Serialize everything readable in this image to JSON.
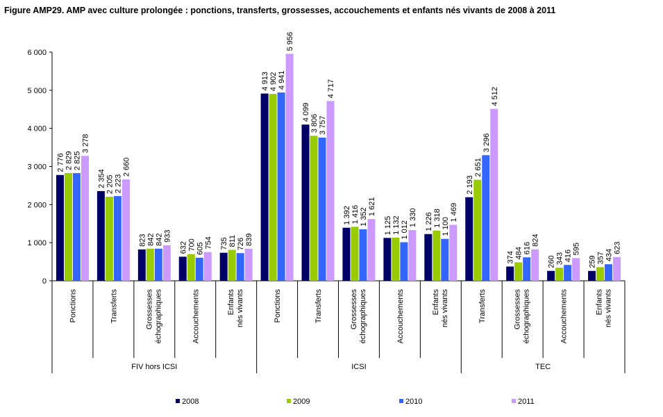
{
  "title": "Figure AMP29. AMP avec culture prolongée : ponctions, transferts, grossesses, accouchements et enfants nés vivants de 2008 à 2011",
  "chart_data": {
    "type": "bar",
    "ylim": [
      0,
      6000
    ],
    "yticks": [
      "0",
      "1 000",
      "2 000",
      "3 000",
      "4 000",
      "5 000",
      "6 000"
    ],
    "grid": false,
    "legend_position": "bottom",
    "groups": [
      {
        "name": "FIV hors ICSI",
        "categories": [
          "Ponctions",
          "Transferts",
          "Grossesses échographiques",
          "Accouchements",
          "Enfants nés vivants"
        ]
      },
      {
        "name": "ICSI",
        "categories": [
          "Ponctions",
          "Transferts",
          "Grossesses échographiques",
          "Accouchements",
          "Enfants nés vivants"
        ]
      },
      {
        "name": "TEC",
        "categories": [
          "Transferts",
          "Grossesses échographiques",
          "Accouchements",
          "Enfants nés vivants"
        ]
      }
    ],
    "series": [
      {
        "name": "2008",
        "color": "#000066",
        "values": [
          2776,
          2354,
          823,
          632,
          735,
          4913,
          4099,
          1392,
          1125,
          1226,
          2193,
          374,
          260,
          259
        ],
        "labels": [
          "2 776",
          "2 354",
          "823",
          "632",
          "735",
          "4 913",
          "4 099",
          "1 392",
          "1 125",
          "1 226",
          "2 193",
          "374",
          "260",
          "259"
        ]
      },
      {
        "name": "2009",
        "color": "#99cc00",
        "values": [
          2829,
          2205,
          842,
          700,
          811,
          4902,
          3806,
          1416,
          1132,
          1318,
          2651,
          484,
          343,
          357
        ],
        "labels": [
          "2 829",
          "2 205",
          "842",
          "700",
          "811",
          "4 902",
          "3 806",
          "1 416",
          "1 132",
          "1 318",
          "2 651",
          "484",
          "343",
          "357"
        ]
      },
      {
        "name": "2010",
        "color": "#3366ff",
        "values": [
          2825,
          2223,
          842,
          605,
          726,
          4941,
          3757,
          1352,
          1012,
          1100,
          3296,
          616,
          416,
          434
        ],
        "labels": [
          "2 825",
          "2 223",
          "842",
          "605",
          "726",
          "4 941",
          "3 757",
          "1 352",
          "1 012",
          "1 100",
          "3 296",
          "616",
          "416",
          "434"
        ]
      },
      {
        "name": "2011",
        "color": "#cc99ff",
        "values": [
          3278,
          2660,
          933,
          754,
          839,
          5956,
          4717,
          1621,
          1330,
          1469,
          4512,
          824,
          595,
          623
        ],
        "labels": [
          "3 278",
          "2 660",
          "933",
          "754",
          "839",
          "5 956",
          "4 717",
          "1 621",
          "1 330",
          "1 469",
          "4 512",
          "824",
          "595",
          "623"
        ]
      }
    ]
  }
}
